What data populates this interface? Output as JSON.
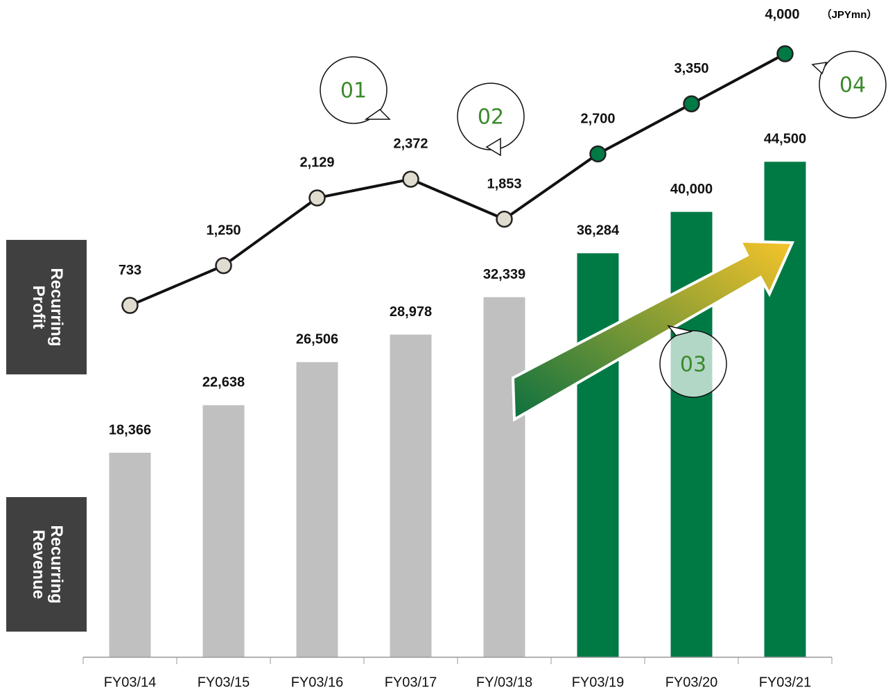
{
  "chart_data": {
    "type": "bar-line",
    "unit": "（JPYmn）",
    "categories": [
      "FY03/14",
      "FY03/15",
      "FY03/16",
      "FY03/17",
      "FY/03/18",
      "FY03/19",
      "FY03/20",
      "FY03/21"
    ],
    "series": [
      {
        "name": "Recurring Revenue",
        "type": "bar",
        "colors": [
          "#c0c0c0",
          "#c0c0c0",
          "#c0c0c0",
          "#c0c0c0",
          "#c0c0c0",
          "#007a45",
          "#007a45",
          "#007a45"
        ],
        "values": [
          18366,
          22638,
          26506,
          28978,
          32339,
          36284,
          40000,
          44500
        ],
        "value_labels": [
          "18,366",
          "22,638",
          "26,506",
          "28,978",
          "32,339",
          "36,284",
          "40,000",
          "44,500"
        ]
      },
      {
        "name": "Recurring Profit",
        "type": "line",
        "axis": "y2",
        "color": "#111111",
        "colors": [
          "#e0dccf",
          "#e0dccf",
          "#e0dccf",
          "#e0dccf",
          "#e0dccf",
          "#007a45",
          "#007a45",
          "#007a45"
        ],
        "values": [
          733,
          1250,
          2129,
          2372,
          1853,
          2700,
          3350,
          4000
        ],
        "value_labels": [
          "733",
          "1,250",
          "2,129",
          "2,372",
          "1,853",
          "2,700",
          "3,350",
          "4,000"
        ]
      }
    ],
    "ylim": [
      0,
      50000
    ],
    "y2lim": [
      0,
      4500
    ],
    "annotations": [
      "01",
      "02",
      "03",
      "04"
    ]
  }
}
